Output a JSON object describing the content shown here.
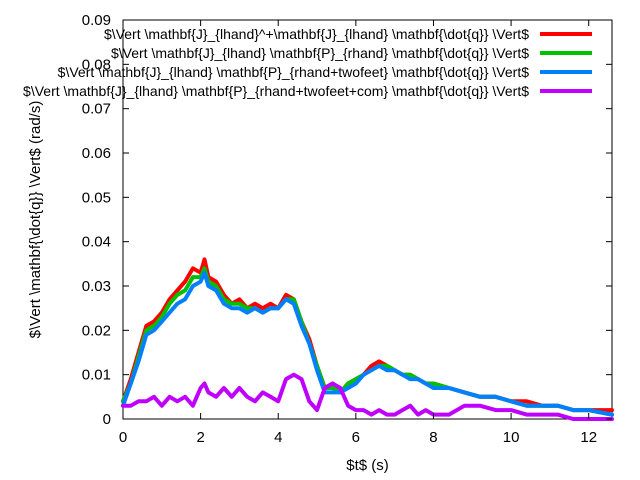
{
  "chart_data": {
    "type": "line",
    "title": "",
    "xlabel": "$t$ (s)",
    "ylabel": "$\\Vert \\mathbf{\\dot{q}} \\Vert$ (rad/s)",
    "xlim": [
      0,
      12.6
    ],
    "ylim": [
      0,
      0.09
    ],
    "x_ticks": [
      "0",
      "2",
      "4",
      "6",
      "8",
      "10",
      "12"
    ],
    "y_ticks": [
      "0",
      "0.01",
      "0.02",
      "0.03",
      "0.04",
      "0.05",
      "0.06",
      "0.07",
      "0.08",
      "0.09"
    ],
    "grid": false,
    "legend_position": "top-right",
    "series": [
      {
        "name": "$\\Vert \\mathbf{J}_{lhand}^+\\mathbf{J}_{lhand} \\mathbf{\\dot{q}} \\Vert$",
        "color": "#ff0000",
        "x": [
          0,
          0.2,
          0.4,
          0.6,
          0.8,
          1.0,
          1.2,
          1.4,
          1.6,
          1.8,
          2.0,
          2.1,
          2.2,
          2.4,
          2.6,
          2.8,
          3.0,
          3.2,
          3.4,
          3.6,
          3.8,
          4.0,
          4.2,
          4.4,
          4.6,
          4.8,
          5.0,
          5.2,
          5.4,
          5.6,
          5.8,
          6.0,
          6.2,
          6.4,
          6.6,
          6.8,
          7.0,
          7.2,
          7.4,
          7.6,
          7.8,
          8.0,
          8.4,
          8.8,
          9.2,
          9.6,
          10.0,
          10.4,
          10.8,
          11.2,
          11.6,
          12.0,
          12.6
        ],
        "values": [
          0.004,
          0.009,
          0.015,
          0.021,
          0.022,
          0.024,
          0.027,
          0.029,
          0.031,
          0.034,
          0.033,
          0.036,
          0.032,
          0.031,
          0.028,
          0.026,
          0.027,
          0.025,
          0.026,
          0.025,
          0.026,
          0.025,
          0.028,
          0.027,
          0.022,
          0.018,
          0.012,
          0.007,
          0.008,
          0.006,
          0.008,
          0.009,
          0.01,
          0.012,
          0.013,
          0.012,
          0.011,
          0.01,
          0.01,
          0.009,
          0.008,
          0.008,
          0.007,
          0.006,
          0.005,
          0.005,
          0.004,
          0.004,
          0.003,
          0.003,
          0.002,
          0.002,
          0.002
        ]
      },
      {
        "name": "$\\Vert \\mathbf{J}_{lhand} \\mathbf{P}_{rhand} \\mathbf{\\dot{q}} \\Vert$",
        "color": "#00c000",
        "x": [
          0,
          0.2,
          0.4,
          0.6,
          0.8,
          1.0,
          1.2,
          1.4,
          1.6,
          1.8,
          2.0,
          2.1,
          2.2,
          2.4,
          2.6,
          2.8,
          3.0,
          3.2,
          3.4,
          3.6,
          3.8,
          4.0,
          4.2,
          4.4,
          4.6,
          4.8,
          5.0,
          5.2,
          5.4,
          5.6,
          5.8,
          6.0,
          6.2,
          6.4,
          6.6,
          6.8,
          7.0,
          7.2,
          7.4,
          7.6,
          7.8,
          8.0,
          8.4,
          8.8,
          9.2,
          9.6,
          10.0,
          10.4,
          10.8,
          11.2,
          11.6,
          12.0,
          12.6
        ],
        "values": [
          0.004,
          0.008,
          0.014,
          0.02,
          0.021,
          0.023,
          0.026,
          0.028,
          0.029,
          0.032,
          0.032,
          0.034,
          0.031,
          0.03,
          0.027,
          0.026,
          0.026,
          0.025,
          0.025,
          0.024,
          0.025,
          0.025,
          0.027,
          0.027,
          0.022,
          0.017,
          0.012,
          0.007,
          0.007,
          0.006,
          0.008,
          0.009,
          0.01,
          0.011,
          0.012,
          0.012,
          0.011,
          0.01,
          0.01,
          0.009,
          0.008,
          0.008,
          0.007,
          0.006,
          0.005,
          0.005,
          0.004,
          0.003,
          0.003,
          0.003,
          0.002,
          0.002,
          0.001
        ]
      },
      {
        "name": "$\\Vert \\mathbf{J}_{lhand} \\mathbf{P}_{rhand+twofeet} \\mathbf{\\dot{q}} \\Vert$",
        "color": "#0080ff",
        "x": [
          0,
          0.2,
          0.4,
          0.6,
          0.8,
          1.0,
          1.2,
          1.4,
          1.6,
          1.8,
          2.0,
          2.1,
          2.2,
          2.4,
          2.6,
          2.8,
          3.0,
          3.2,
          3.4,
          3.6,
          3.8,
          4.0,
          4.2,
          4.4,
          4.6,
          4.8,
          5.0,
          5.2,
          5.4,
          5.6,
          5.8,
          6.0,
          6.2,
          6.4,
          6.6,
          6.8,
          7.0,
          7.2,
          7.4,
          7.6,
          7.8,
          8.0,
          8.4,
          8.8,
          9.2,
          9.6,
          10.0,
          10.4,
          10.8,
          11.2,
          11.6,
          12.0,
          12.6
        ],
        "values": [
          0.003,
          0.008,
          0.013,
          0.019,
          0.02,
          0.022,
          0.024,
          0.026,
          0.027,
          0.03,
          0.031,
          0.033,
          0.03,
          0.029,
          0.026,
          0.025,
          0.025,
          0.024,
          0.025,
          0.024,
          0.025,
          0.025,
          0.027,
          0.026,
          0.021,
          0.017,
          0.011,
          0.006,
          0.006,
          0.006,
          0.007,
          0.008,
          0.01,
          0.011,
          0.012,
          0.011,
          0.011,
          0.01,
          0.009,
          0.009,
          0.008,
          0.007,
          0.007,
          0.006,
          0.005,
          0.005,
          0.004,
          0.003,
          0.003,
          0.003,
          0.002,
          0.002,
          0.001
        ]
      },
      {
        "name": "$\\Vert \\mathbf{J}_{lhand} \\mathbf{P}_{rhand+twofeet+com} \\mathbf{\\dot{q}} \\Vert$",
        "color": "#c000ff",
        "x": [
          0,
          0.2,
          0.4,
          0.6,
          0.8,
          1.0,
          1.2,
          1.4,
          1.6,
          1.8,
          2.0,
          2.1,
          2.2,
          2.4,
          2.6,
          2.8,
          3.0,
          3.2,
          3.4,
          3.6,
          3.8,
          4.0,
          4.2,
          4.4,
          4.6,
          4.8,
          5.0,
          5.2,
          5.4,
          5.6,
          5.8,
          6.0,
          6.2,
          6.4,
          6.6,
          6.8,
          7.0,
          7.2,
          7.4,
          7.6,
          7.8,
          8.0,
          8.4,
          8.8,
          9.2,
          9.6,
          10.0,
          10.4,
          10.8,
          11.2,
          11.6,
          12.0,
          12.6
        ],
        "values": [
          0.003,
          0.003,
          0.004,
          0.004,
          0.005,
          0.003,
          0.005,
          0.004,
          0.005,
          0.003,
          0.007,
          0.008,
          0.006,
          0.005,
          0.007,
          0.005,
          0.007,
          0.005,
          0.004,
          0.006,
          0.005,
          0.004,
          0.009,
          0.01,
          0.009,
          0.004,
          0.002,
          0.007,
          0.008,
          0.007,
          0.003,
          0.002,
          0.002,
          0.001,
          0.002,
          0.001,
          0.001,
          0.002,
          0.003,
          0.001,
          0.002,
          0.001,
          0.001,
          0.003,
          0.003,
          0.002,
          0.002,
          0.001,
          0.001,
          0.001,
          0.0,
          0.0,
          0.0
        ]
      }
    ]
  }
}
